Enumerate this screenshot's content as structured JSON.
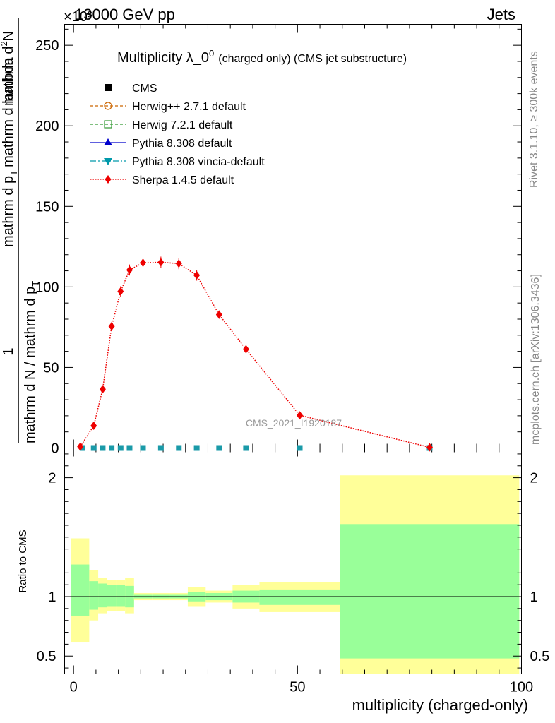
{
  "header": {
    "exponent": "×10³",
    "energy": "13000 GeV pp",
    "process": "Jets"
  },
  "side": {
    "rivet": "Rivet 3.1.10, ≥ 300k events",
    "mcplots": "mcplots.cern.ch [arXiv:1306.3436]"
  },
  "watermark": "CMS_2021_I1920187",
  "chart_data": [
    {
      "type": "line",
      "title": "Multiplicity λ_0",
      "title_sup": "0",
      "title_suffix": "(charged only) (CMS jet substructure)",
      "ylabel_parts": [
        "1",
        "mathrm d N / mathrm d p",
        "T",
        "mathrm d p",
        "T",
        "mathrm d lambda",
        "mathrm d",
        "2",
        "N"
      ],
      "xlim": [
        -2,
        100
      ],
      "ylim": [
        0,
        263
      ],
      "yticks": [
        0,
        50,
        100,
        150,
        200,
        250
      ],
      "ytick_labels": [
        "0",
        "50",
        "100",
        "150",
        "200",
        "250"
      ],
      "legend": [
        "CMS",
        "Herwig++ 2.7.1 default",
        "Herwig 7.2.1 default",
        "Pythia 8.308 default",
        "Pythia 8.308 vincia-default",
        "Sherpa 1.4.5 default"
      ],
      "series": [
        {
          "name": "CMS",
          "color": "#000000",
          "x": [
            2,
            4.5,
            6.5,
            8.5,
            10.5,
            12.5,
            15.5,
            19.5,
            23.5,
            27.5,
            32.5,
            38.5,
            50.5,
            79.5
          ],
          "y": [
            0,
            0,
            0,
            0,
            0,
            0,
            0,
            0,
            0,
            0,
            0,
            0,
            0,
            0
          ]
        },
        {
          "name": "Herwig++ 2.7.1 default",
          "color": "#cc6600",
          "x": [
            2,
            4.5,
            6.5,
            8.5,
            10.5,
            12.5,
            15.5,
            19.5,
            23.5,
            27.5,
            32.5,
            38.5,
            50.5,
            79.5
          ],
          "y": [
            0,
            0,
            0,
            0,
            0,
            0,
            0,
            0,
            0,
            0,
            0,
            0,
            0,
            0
          ]
        },
        {
          "name": "Herwig 7.2.1 default",
          "color": "#339933",
          "x": [
            2,
            4.5,
            6.5,
            8.5,
            10.5,
            12.5,
            15.5,
            19.5,
            23.5,
            27.5,
            32.5,
            38.5,
            50.5,
            79.5
          ],
          "y": [
            0,
            0,
            0,
            0,
            0,
            0,
            0,
            0,
            0,
            0,
            0,
            0,
            0,
            0
          ]
        },
        {
          "name": "Pythia 8.308 default",
          "color": "#0000cc",
          "x": [
            2,
            4.5,
            6.5,
            8.5,
            10.5,
            12.5,
            15.5,
            19.5,
            23.5,
            27.5,
            32.5,
            38.5,
            50.5,
            79.5
          ],
          "y": [
            0,
            0,
            0,
            0,
            0,
            0,
            0,
            0,
            0,
            0,
            0,
            0,
            0,
            0
          ]
        },
        {
          "name": "Pythia 8.308 vincia-default",
          "color": "#0099aa",
          "x": [
            2,
            4.5,
            6.5,
            8.5,
            10.5,
            12.5,
            15.5,
            19.5,
            23.5,
            27.5,
            32.5,
            38.5,
            50.5,
            79.5
          ],
          "y": [
            0,
            0,
            0,
            0,
            0,
            0,
            0,
            0,
            0,
            0,
            0,
            0,
            0,
            0
          ]
        },
        {
          "name": "Sherpa 1.4.5 default",
          "color": "#ee0000",
          "x": [
            1.5,
            4.5,
            6.5,
            8.5,
            10.5,
            12.5,
            15.5,
            19.5,
            23.5,
            27.5,
            32.5,
            38.5,
            50.5,
            79.5
          ],
          "y": [
            0.8,
            13.8,
            36.5,
            75.5,
            97.2,
            110.5,
            115.0,
            115.3,
            114.5,
            107.2,
            82.8,
            61.3,
            20.3,
            0.4
          ],
          "yerr": [
            0.4,
            1.2,
            2.0,
            2.8,
            3.2,
            3.4,
            3.5,
            3.5,
            3.5,
            3.3,
            2.6,
            2.0,
            0.9,
            0.1
          ]
        }
      ]
    },
    {
      "type": "area",
      "ylabel": "Ratio to CMS",
      "xlabel": "multiplicity (charged-only)",
      "xlim": [
        -2,
        100
      ],
      "ylim": [
        0.35,
        2.25
      ],
      "xticks": [
        0,
        50,
        100
      ],
      "xtick_labels": [
        "0",
        "50",
        "100"
      ],
      "yticks": [
        0.5,
        1,
        2
      ],
      "ytick_labels": [
        "0.5",
        "1",
        "2"
      ],
      "bins": [
        [
          -0.5,
          3.5
        ],
        [
          3.5,
          5.5
        ],
        [
          5.5,
          7.5
        ],
        [
          7.5,
          9.5
        ],
        [
          9.5,
          11.5
        ],
        [
          11.5,
          13.5
        ],
        [
          13.5,
          17.5
        ],
        [
          17.5,
          21.5
        ],
        [
          21.5,
          25.5
        ],
        [
          25.5,
          29.5
        ],
        [
          29.5,
          35.5
        ],
        [
          35.5,
          41.5
        ],
        [
          41.5,
          59.5
        ],
        [
          59.5,
          99.5
        ]
      ],
      "inner_band": [
        [
          0.84,
          1.27
        ],
        [
          0.89,
          1.13
        ],
        [
          0.91,
          1.11
        ],
        [
          0.92,
          1.1
        ],
        [
          0.92,
          1.1
        ],
        [
          0.91,
          1.09
        ],
        [
          0.985,
          1.015
        ],
        [
          0.985,
          1.015
        ],
        [
          0.985,
          1.015
        ],
        [
          0.96,
          1.04
        ],
        [
          0.97,
          1.03
        ],
        [
          0.95,
          1.05
        ],
        [
          0.93,
          1.06
        ],
        [
          0.48,
          1.61
        ]
      ],
      "outer_band": [
        [
          0.62,
          1.49
        ],
        [
          0.8,
          1.22
        ],
        [
          0.86,
          1.16
        ],
        [
          0.88,
          1.14
        ],
        [
          0.88,
          1.14
        ],
        [
          0.86,
          1.16
        ],
        [
          0.97,
          1.03
        ],
        [
          0.97,
          1.03
        ],
        [
          0.97,
          1.03
        ],
        [
          0.92,
          1.08
        ],
        [
          0.95,
          1.05
        ],
        [
          0.9,
          1.1
        ],
        [
          0.87,
          1.12
        ],
        [
          0.35,
          2.02
        ]
      ],
      "reference": 1
    }
  ]
}
